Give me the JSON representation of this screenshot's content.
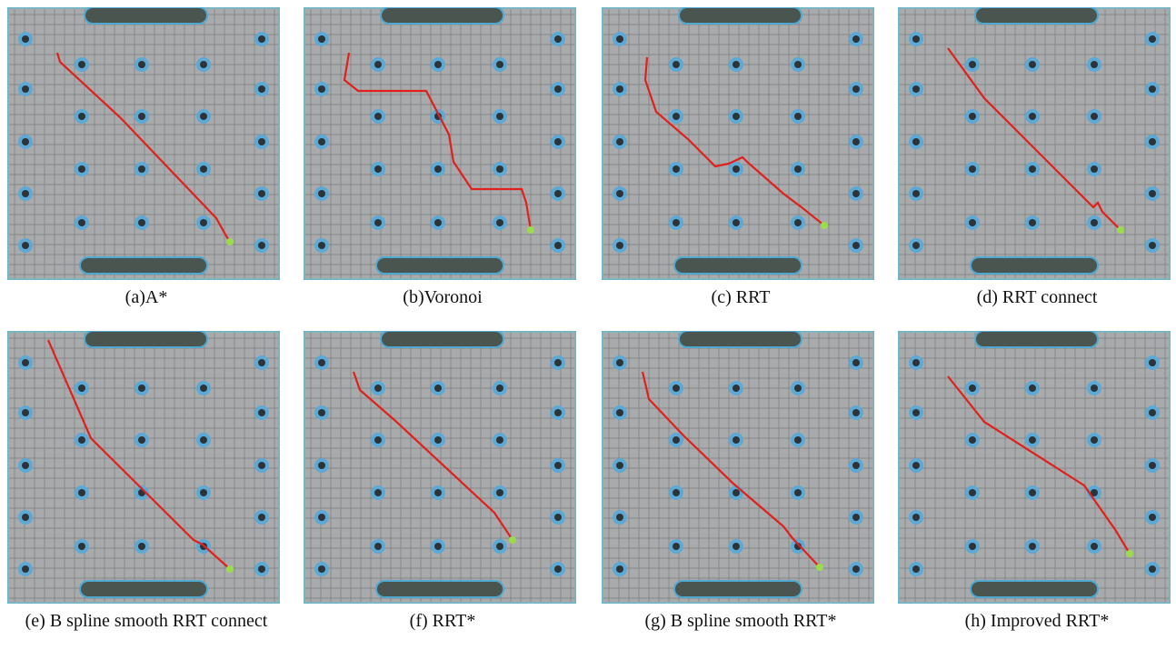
{
  "panels": [
    {
      "caption": "(a)A*"
    },
    {
      "caption": "(b)Voronoi"
    },
    {
      "caption": "(c) RRT"
    },
    {
      "caption": "(d) RRT connect"
    },
    {
      "caption": "(e) B spline smooth RRT connect"
    },
    {
      "caption": "(f) RRT*"
    },
    {
      "caption": "(g) B spline smooth RRT*"
    },
    {
      "caption": "(h) Improved RRT*"
    }
  ]
}
